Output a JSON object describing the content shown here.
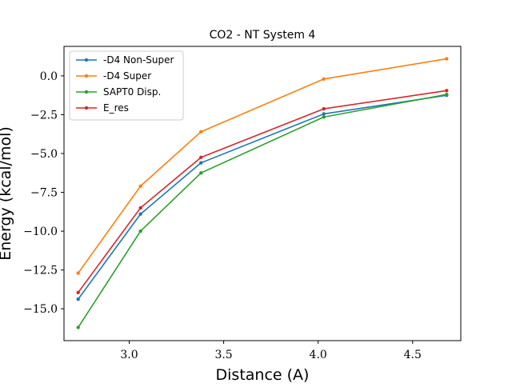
{
  "chart_data": {
    "type": "line",
    "title": "CO2 - NT System 4",
    "xlabel": "Distance (A)",
    "ylabel": "Energy (kcal/mol)",
    "xlim": [
      2.655,
      4.755
    ],
    "ylim": [
      -17.05,
      1.9
    ],
    "xticks": [
      3.0,
      3.5,
      4.0,
      4.5
    ],
    "xtick_labels": [
      "3.0",
      "3.5",
      "4.0",
      "4.5"
    ],
    "yticks": [
      0.0,
      -2.5,
      -5.0,
      -7.5,
      -10.0,
      -12.5,
      -15.0
    ],
    "ytick_labels": [
      "0.0",
      "−2.5",
      "−5.0",
      "−7.5",
      "−10.0",
      "−12.5",
      "−15.0"
    ],
    "grid": false,
    "legend_position": "top-left",
    "x": [
      2.73,
      3.06,
      3.38,
      4.03,
      4.68
    ],
    "series": [
      {
        "name": "-D4 Non-Super",
        "color": "#1f77b4",
        "values": [
          -14.38,
          -8.9,
          -5.6,
          -2.45,
          -1.25
        ]
      },
      {
        "name": "-D4 Super",
        "color": "#ff7f0e",
        "values": [
          -12.7,
          -7.1,
          -3.6,
          -0.2,
          1.1
        ]
      },
      {
        "name": "SAPT0 Disp.",
        "color": "#2ca02c",
        "values": [
          -16.2,
          -10.0,
          -6.25,
          -2.65,
          -1.2
        ]
      },
      {
        "name": "E_res",
        "color": "#d62728",
        "values": [
          -13.95,
          -8.5,
          -5.25,
          -2.12,
          -0.95
        ]
      }
    ]
  }
}
